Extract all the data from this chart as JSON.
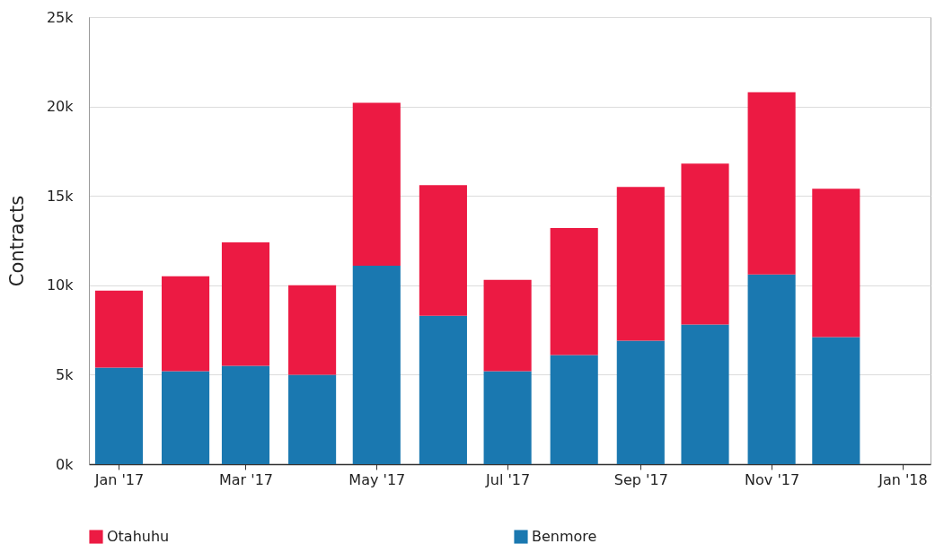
{
  "chart_data": {
    "type": "bar",
    "ylabel": "Contracts",
    "x": [
      "2017-01",
      "2017-02",
      "2017-03",
      "2017-04",
      "2017-05",
      "2017-06",
      "2017-07",
      "2017-08",
      "2017-09",
      "2017-10",
      "2017-11",
      "2017-12"
    ],
    "series": [
      {
        "name": "Benmore",
        "color": "#1a78b0",
        "values": [
          5400,
          5200,
          5500,
          5000,
          11100,
          8300,
          5200,
          6100,
          6900,
          7800,
          10600,
          7100
        ]
      },
      {
        "name": "Otahuhu",
        "color": "#ec1a43",
        "values": [
          4300,
          5300,
          6900,
          5000,
          9100,
          7300,
          5100,
          7100,
          8600,
          9000,
          10200,
          8300
        ]
      }
    ],
    "stacked": true,
    "xlim": [
      "2016-12-18",
      "2018-01-14"
    ],
    "xticks": [
      {
        "value": "2017-01",
        "label": "Jan '17"
      },
      {
        "value": "2017-03",
        "label": "Mar '17"
      },
      {
        "value": "2017-05",
        "label": "May '17"
      },
      {
        "value": "2017-07",
        "label": "Jul '17"
      },
      {
        "value": "2017-09",
        "label": "Sep '17"
      },
      {
        "value": "2017-11",
        "label": "Nov '17"
      },
      {
        "value": "2018-01",
        "label": "Jan '18"
      }
    ],
    "ylim": [
      0,
      25000
    ],
    "yticks": [
      {
        "value": 0,
        "label": "0k"
      },
      {
        "value": 5000,
        "label": "5k"
      },
      {
        "value": 10000,
        "label": "10k"
      },
      {
        "value": 15000,
        "label": "15k"
      },
      {
        "value": 20000,
        "label": "20k"
      },
      {
        "value": 25000,
        "label": "25k"
      }
    ],
    "grid": "y",
    "legend": "bottom"
  }
}
